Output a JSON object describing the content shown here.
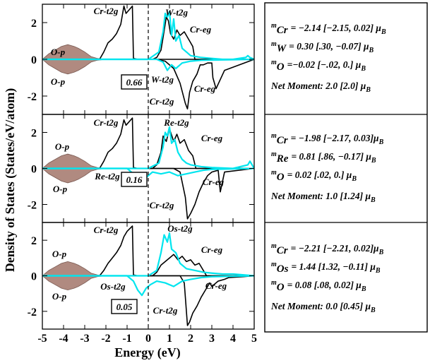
{
  "chart_data": {
    "type": "line",
    "xlabel": "Energy (eV)",
    "ylabel": "Density of States (States/eV/atom)",
    "xlim": [
      -5,
      5
    ],
    "ylim": [
      -3,
      3
    ],
    "xticks": [
      "-5",
      "-4",
      "-3",
      "-2",
      "-1",
      "0",
      "1",
      "2",
      "3",
      "4",
      "5"
    ],
    "yticks": [
      "2",
      "0",
      "-2"
    ],
    "colors": {
      "cr": "#000000",
      "tm": "#00e5ee",
      "o_fill": "#b08a80",
      "o_line": "#7a5a52"
    },
    "panels": [
      {
        "moment_label": "0.66",
        "annotations": [
          "Cr-t2g",
          "W-t2g",
          "Cr-eg",
          "O-p",
          "O-p",
          "W-t2g",
          "Cr-t2g",
          "Cr-eg"
        ],
        "info": {
          "cr": {
            "sub": "Cr",
            "text": "= −2.14 [−2.15, 0.02] μ",
            "unit": "B"
          },
          "tm": {
            "sub": "W",
            "text": "= 0.30 [.30, −0.07] μ",
            "unit": "B"
          },
          "o": {
            "sub": "O",
            "text": "=−0.02 [−.02, 0.] μ",
            "unit": "B"
          },
          "net": "Net Moment: 2.0 [2.0] μ",
          "net_unit": "B"
        },
        "series": [
          {
            "name": "Cr",
            "color": "#000000",
            "x": [
              -5,
              -2.3,
              -2.1,
              -1.9,
              -1.7,
              -1.5,
              -1.3,
              -1.15,
              -1.05,
              -0.75,
              -0.7,
              -0.5,
              -0.2,
              0,
              0.2,
              0.4,
              0.6,
              0.7,
              0.85,
              0.95,
              1.05,
              1.2,
              1.35,
              1.5,
              1.7,
              1.9,
              2.1,
              2.2,
              5
            ],
            "up": [
              0,
              0,
              0.4,
              0.9,
              1.1,
              1.4,
              1.9,
              2.9,
              2.5,
              2.9,
              0.05,
              0,
              0,
              0,
              0,
              0.1,
              0.5,
              1.2,
              2.3,
              2.1,
              1.4,
              1.1,
              1.6,
              1.3,
              1.5,
              1.1,
              0.7,
              0,
              0
            ],
            "dn_x": [
              -5,
              0.4,
              0.8,
              1.2,
              1.5,
              1.75,
              1.85,
              1.95,
              2.1,
              2.3,
              2.45,
              2.6,
              2.8,
              3.0,
              3.05,
              3.2,
              3.6,
              5
            ],
            "dn": [
              0,
              0,
              -0.1,
              -0.5,
              -1.3,
              -2.4,
              -2.7,
              -1.8,
              -1.2,
              -0.8,
              -0.3,
              -0.3,
              -0.2,
              -0.2,
              -1.0,
              -1.6,
              -0.6,
              0
            ]
          },
          {
            "name": "W",
            "color": "#00e5ee",
            "x": [
              -5,
              0,
              0.5,
              0.7,
              0.8,
              0.9,
              1.0,
              1.1,
              1.2,
              1.3,
              1.45,
              1.6,
              1.8,
              2.0,
              2.5,
              3.0,
              3.5,
              4.0,
              4.6,
              4.7,
              4.8,
              5
            ],
            "up": [
              0,
              0,
              0.4,
              1.5,
              2.5,
              2.3,
              2.6,
              1.3,
              2.2,
              1.0,
              1.3,
              0.6,
              0.4,
              0.2,
              0.1,
              0.05,
              0,
              0,
              0.1,
              0.2,
              0.1,
              0
            ],
            "dn_x": [
              -5,
              0.4,
              0.7,
              0.9,
              1.1,
              1.3,
              1.6,
              2.0,
              2.5,
              5
            ],
            "dn": [
              0,
              0,
              -0.15,
              -0.6,
              -0.3,
              -0.5,
              -0.2,
              -0.1,
              -0.05,
              0
            ]
          },
          {
            "name": "O",
            "color": "#b08a80",
            "x": [
              -5,
              -4.7,
              -4.4,
              -4.1,
              -3.8,
              -3.5,
              -3.3,
              -3.0,
              -2.7,
              -2.4,
              -2.0,
              -1.5,
              -1.0,
              -0.5,
              0,
              5
            ],
            "up": [
              0,
              0.3,
              0.5,
              0.7,
              0.8,
              0.7,
              0.6,
              0.4,
              0.15,
              0.05,
              0,
              0,
              0,
              0,
              0,
              0
            ],
            "dn": [
              0,
              -0.3,
              -0.5,
              -0.7,
              -0.8,
              -0.7,
              -0.6,
              -0.4,
              -0.15,
              -0.05,
              0,
              0,
              0,
              0,
              0,
              0
            ]
          }
        ]
      },
      {
        "moment_label": "0.16",
        "annotations": [
          "Cr-t2g",
          "Re-t2g",
          "Cr-eg",
          "O-p",
          "O-p",
          "Re-t2g",
          "Cr-t2g",
          "Cr-eg"
        ],
        "info": {
          "cr": {
            "sub": "Cr",
            "text": "= −1.98 [−2.17, 0.03]μ",
            "unit": "B"
          },
          "tm": {
            "sub": "Re",
            "text": "= 0.81 [.86, −0.17] μ",
            "unit": "B"
          },
          "o": {
            "sub": "O",
            "text": "= 0.02 [.02, 0.]  μ",
            "unit": "B"
          },
          "net": "Net Moment:  1.0  [1.24] μ",
          "net_unit": "B"
        },
        "series": [
          {
            "name": "Cr",
            "color": "#000000",
            "x": [
              -5,
              -2.3,
              -2.1,
              -1.9,
              -1.7,
              -1.5,
              -1.3,
              -1.15,
              -1.05,
              -0.75,
              -0.7,
              -0.5,
              0,
              0.2,
              0.4,
              0.6,
              0.7,
              0.85,
              1.0,
              1.2,
              1.35,
              1.5,
              1.7,
              1.9,
              2.1,
              2.25,
              5
            ],
            "up": [
              0,
              0,
              0.4,
              0.9,
              1.1,
              1.4,
              1.9,
              2.7,
              2.4,
              2.8,
              0.05,
              0,
              0,
              0,
              0.2,
              0.9,
              1.8,
              1.5,
              2.2,
              1.5,
              1.9,
              1.4,
              1.6,
              1.0,
              0.7,
              0,
              0
            ],
            "dn_x": [
              -5,
              1.2,
              1.5,
              1.75,
              1.85,
              2.0,
              2.2,
              2.4,
              2.6,
              2.8,
              3.0,
              3.3,
              3.4,
              3.6,
              5
            ],
            "dn": [
              0,
              0,
              -0.2,
              -1.6,
              -2.8,
              -2.5,
              -2.0,
              -1.3,
              -0.8,
              -0.4,
              -0.2,
              -0.1,
              -1.3,
              -0.2,
              0
            ]
          },
          {
            "name": "Re",
            "color": "#00e5ee",
            "x": [
              -5,
              0,
              0.5,
              0.7,
              0.8,
              0.9,
              1.0,
              1.1,
              1.25,
              1.4,
              1.6,
              1.8,
              2.0,
              2.5,
              3.0,
              4.0,
              4.7,
              4.8,
              4.9,
              5
            ],
            "up": [
              0,
              0,
              0.3,
              1.2,
              2.0,
              1.8,
              2.3,
              1.4,
              1.6,
              0.9,
              0.5,
              0.3,
              0.2,
              0.1,
              0.05,
              0,
              0.2,
              0.4,
              0.2,
              0
            ],
            "dn_x": [
              -5,
              -1.0,
              -0.6,
              -0.4,
              -0.2,
              0.2,
              0.6,
              1.0,
              1.4,
              1.8,
              2.2,
              2.6,
              3.0,
              5
            ],
            "dn": [
              0,
              0,
              -0.4,
              -0.9,
              -0.6,
              -0.2,
              -0.3,
              -0.2,
              -0.4,
              -0.3,
              -0.2,
              -0.1,
              -0.05,
              0
            ]
          },
          {
            "name": "O",
            "color": "#b08a80",
            "x": [
              -5,
              -4.7,
              -4.4,
              -4.1,
              -3.8,
              -3.5,
              -3.3,
              -3.0,
              -2.7,
              -2.4,
              -2.0,
              -1.5,
              -1.0,
              -0.5,
              0,
              5
            ],
            "up": [
              0,
              0.3,
              0.5,
              0.7,
              0.8,
              0.7,
              0.6,
              0.4,
              0.15,
              0.05,
              0,
              0,
              0,
              0,
              0,
              0
            ],
            "dn": [
              0,
              -0.3,
              -0.5,
              -0.7,
              -0.8,
              -0.7,
              -0.6,
              -0.4,
              -0.15,
              -0.05,
              0,
              0,
              0,
              0,
              0,
              0
            ]
          }
        ]
      },
      {
        "moment_label": "0.05",
        "annotations": [
          "Cr-t2g",
          "Os-t2g",
          "Cr-eg",
          "O-p",
          "O-p",
          "Os-t2g",
          "Cr-t2g",
          "Cr-eg"
        ],
        "info": {
          "cr": {
            "sub": "Cr",
            "text": "= −2.21 [−2.21, 0.02]μ",
            "unit": "B"
          },
          "tm": {
            "sub": "Os",
            "text": "= 1.44 [1.32, −0.11] μ",
            "unit": "B"
          },
          "o": {
            "sub": "O",
            "text": "= 0.08 [.08, 0.02] μ",
            "unit": "B"
          },
          "net": "Net Moment:  0.0  [0.45] μ",
          "net_unit": "B"
        },
        "series": [
          {
            "name": "Cr",
            "color": "#000000",
            "x": [
              -5,
              -2.3,
              -2.1,
              -1.9,
              -1.7,
              -1.5,
              -1.3,
              -1.15,
              -1.0,
              -0.75,
              -0.7,
              -0.5,
              0,
              0.2,
              0.4,
              0.6,
              0.8,
              1.0,
              1.2,
              1.4,
              1.6,
              1.8,
              2.0,
              2.2,
              2.4,
              2.6,
              2.75,
              5
            ],
            "up": [
              0,
              0,
              0.3,
              0.7,
              1.0,
              1.3,
              1.7,
              2.2,
              2.5,
              2.8,
              0.05,
              0,
              0,
              0,
              0.2,
              0.6,
              0.8,
              1.0,
              1.2,
              0.9,
              1.1,
              0.8,
              0.9,
              0.6,
              0.7,
              0.3,
              0,
              0
            ],
            "dn_x": [
              -5,
              1.5,
              1.7,
              1.85,
              1.95,
              2.1,
              2.3,
              2.5,
              2.7,
              2.9,
              3.0,
              3.3,
              3.6,
              3.8,
              4.5,
              5
            ],
            "dn": [
              0,
              0,
              -0.4,
              -2.8,
              -2.6,
              -2.1,
              -1.7,
              -1.2,
              -0.8,
              -0.4,
              -0.6,
              -0.3,
              -0.2,
              -0.1,
              -0.05,
              0
            ]
          },
          {
            "name": "Os",
            "color": "#00e5ee",
            "x": [
              -5,
              0,
              0.4,
              0.6,
              0.75,
              0.9,
              1.0,
              1.1,
              1.3,
              1.5,
              1.8,
              2.2,
              2.6,
              3.0,
              3.5,
              4.0,
              4.5,
              5
            ],
            "up": [
              0,
              0,
              0.3,
              1.3,
              2.3,
              1.9,
              2.4,
              1.5,
              1.3,
              0.7,
              0.4,
              0.3,
              0.2,
              0.15,
              0.1,
              0.1,
              0.05,
              0
            ],
            "dn_x": [
              -5,
              -1.0,
              -0.7,
              -0.5,
              -0.3,
              -0.1,
              0.1,
              0.4,
              0.8,
              1.2,
              1.6,
              2.0,
              2.5,
              3.0,
              5
            ],
            "dn": [
              0,
              0,
              -0.3,
              -0.8,
              -1.1,
              -0.7,
              -0.5,
              -0.3,
              -0.4,
              -0.6,
              -0.3,
              -0.2,
              -0.1,
              -0.05,
              0
            ]
          },
          {
            "name": "O",
            "color": "#b08a80",
            "x": [
              -5,
              -4.7,
              -4.4,
              -4.1,
              -3.8,
              -3.5,
              -3.3,
              -3.0,
              -2.7,
              -2.4,
              -2.0,
              -1.5,
              -1.0,
              -0.5,
              0,
              5
            ],
            "up": [
              0,
              0.3,
              0.5,
              0.7,
              0.8,
              0.7,
              0.6,
              0.4,
              0.15,
              0.05,
              0,
              0,
              0,
              0,
              0,
              0
            ],
            "dn": [
              0,
              -0.3,
              -0.5,
              -0.7,
              -0.8,
              -0.7,
              -0.6,
              -0.4,
              -0.15,
              -0.05,
              0,
              0,
              0,
              0,
              0,
              0
            ]
          }
        ]
      }
    ]
  }
}
